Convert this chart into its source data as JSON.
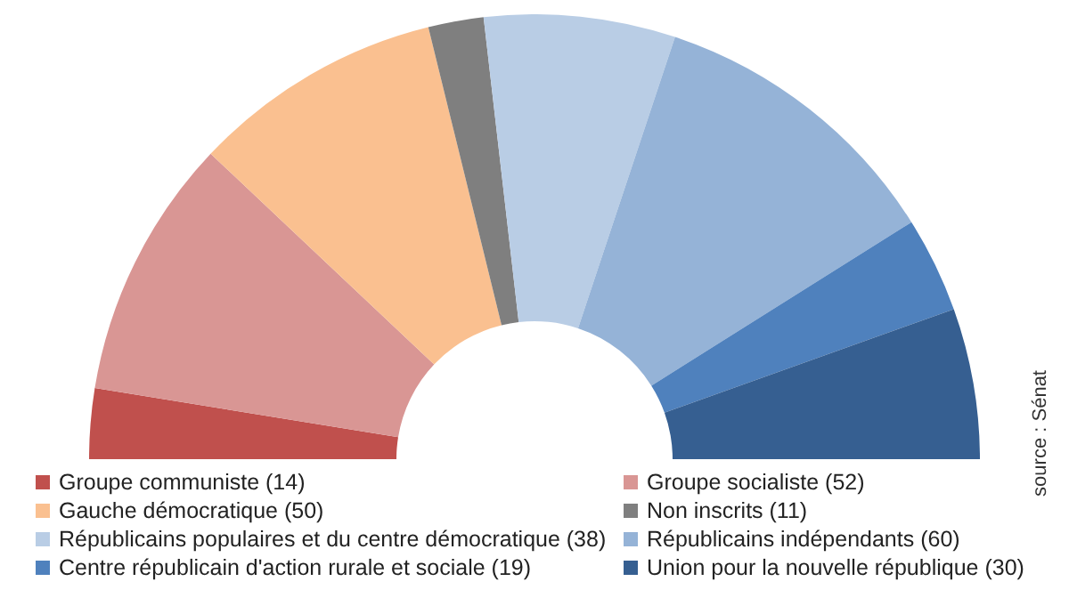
{
  "chart_data": {
    "type": "donut",
    "categories": [
      "Groupe communiste (14)",
      "Groupe socialiste (52)",
      "Gauche démocratique (50)",
      "Non inscrits (11)",
      "Républicains populaires et du centre démocratique (38)",
      "Républicains indépendants (60)",
      "Centre républicain d'action rurale et sociale (19)",
      "Union pour la nouvelle république (30)"
    ],
    "values": [
      14,
      52,
      50,
      11,
      38,
      60,
      19,
      30
    ],
    "colors": [
      "#c0504d",
      "#d99694",
      "#fac090",
      "#7f7f7f",
      "#b9cde5",
      "#95b3d7",
      "#4f81bd",
      "#365f91"
    ],
    "legend": "bottom",
    "annotations": [
      "source : Sénat"
    ]
  }
}
